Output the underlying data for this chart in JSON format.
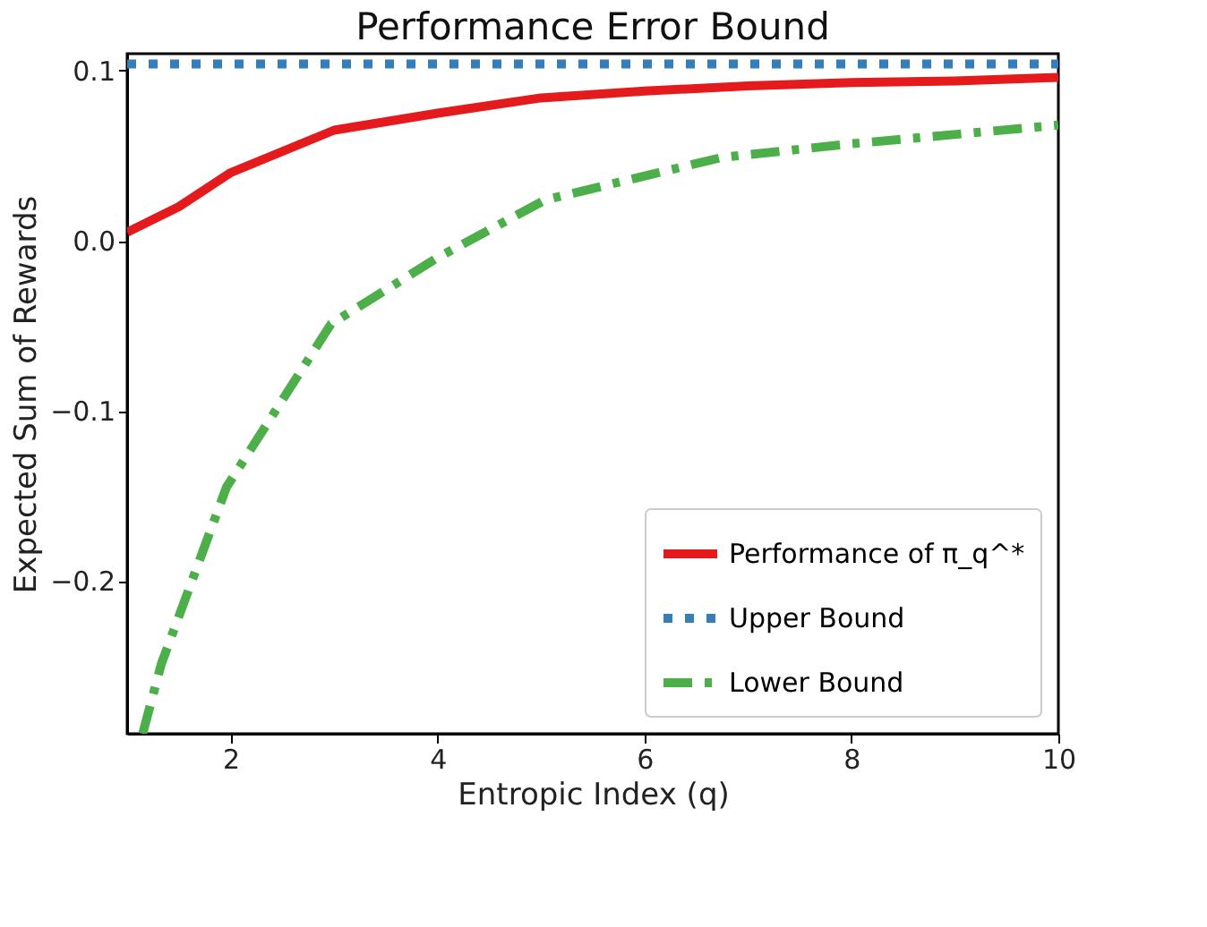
{
  "chart_data": {
    "type": "line",
    "title": "Performance Error Bound",
    "xlabel": "Entropic Index (q)",
    "ylabel": "Expected Sum of Rewards",
    "xlim": [
      1,
      10
    ],
    "xticks": [
      2,
      4,
      6,
      8,
      10
    ],
    "ylim": [
      -0.29,
      0.11
    ],
    "yticks": [
      {
        "value": -0.2,
        "label": "−0.2"
      },
      {
        "value": -0.1,
        "label": "−0.1"
      },
      {
        "value": 0,
        "label": "0.0"
      },
      0.1
    ],
    "grid": false,
    "legend": "bottom right",
    "series": [
      {
        "name": "Performance of π_q^*",
        "color": "#e41a1c",
        "line_style": "solid",
        "x": [
          1,
          1.5,
          2,
          3,
          4,
          5,
          6,
          7,
          8,
          9,
          10
        ],
        "values": [
          0.005,
          0.02,
          0.04,
          0.065,
          0.075,
          0.084,
          0.088,
          0.091,
          0.093,
          0.094,
          0.096
        ]
      },
      {
        "name": "Upper Bound",
        "color": "#377eb8",
        "line_style": "dotted",
        "x": [
          1,
          10
        ],
        "values": [
          0.104,
          0.104
        ]
      },
      {
        "name": "Lower Bound",
        "color": "#4daf4a",
        "line_style": "dashdot",
        "x": [
          1.15,
          1.33,
          1.96,
          2.97,
          4,
          5.04,
          6.75,
          8,
          10
        ],
        "values": [
          -0.29,
          -0.249,
          -0.145,
          -0.049,
          -0.01,
          0.024,
          0.049,
          0.057,
          0.068
        ]
      }
    ]
  }
}
